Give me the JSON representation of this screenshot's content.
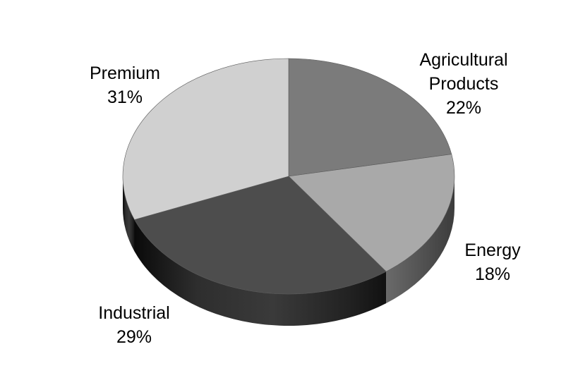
{
  "chart_data": {
    "type": "pie",
    "title": "",
    "style": "3d",
    "series": [
      {
        "label_lines": [
          "Agricultural",
          "Products"
        ],
        "percent_text": "22%",
        "value": 22,
        "color": "#7b7b7b"
      },
      {
        "label_lines": [
          "Energy"
        ],
        "percent_text": "18%",
        "value": 18,
        "color": "#a9a9a9"
      },
      {
        "label_lines": [
          "Industrial"
        ],
        "percent_text": "29%",
        "value": 29,
        "color": "#4d4d4d"
      },
      {
        "label_lines": [
          "Premium"
        ],
        "percent_text": "31%",
        "value": 31,
        "color": "#d0d0d0"
      }
    ]
  }
}
